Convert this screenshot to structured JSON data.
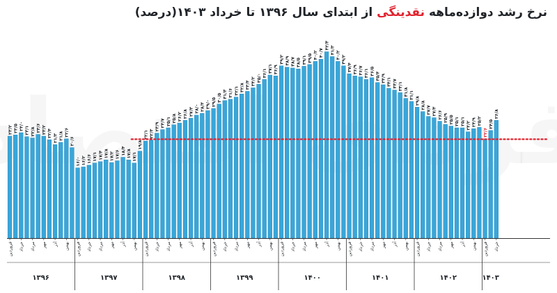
{
  "title": {
    "prefix": "نرخ رشد دوازده‌ماهه ",
    "highlight": "نقدینگی",
    "suffix": " از ابتدای  سال ۱۳۹۶ تا خرداد ۱۴۰۳(درصد)"
  },
  "watermark": "فردای اقتصاد",
  "colors": {
    "bar": "#3aa6d8",
    "bar_edge": "#1f86bd",
    "avg_line": "#e0232e",
    "axis": "#333333",
    "label": "#1f2328",
    "highlight_label": "#e0232e"
  },
  "chart_data": {
    "type": "bar",
    "ylim": [
      0,
      45
    ],
    "average_line": 22.5,
    "highlight_value_label": "۲۲/۶",
    "month_labels": [
      "فروردین",
      "خرداد",
      "مرداد",
      "مهر",
      "آذر",
      "بهمن"
    ],
    "years": [
      {
        "label": "۱۳۹۶",
        "values": [
          23.2,
          23.5,
          24.0,
          23.1,
          22.8,
          23.6,
          23.2,
          22.4,
          21.3,
          21.8,
          22.6,
          20.6
        ],
        "value_labels": [
          "۲۳/۲",
          "۲۳/۵",
          "۲۴/۰",
          "۲۳/۱",
          "۲۲/۸",
          "۲۳/۶",
          "۲۳/۲",
          "۲۲/۴",
          "۲۱/۳",
          "۲۱/۸",
          "۲۲/۶",
          "۲۰/۶"
        ]
      },
      {
        "label": "۱۳۹۷",
        "values": [
          16.0,
          16.2,
          16.6,
          17.1,
          17.4,
          17.8,
          17.2,
          17.6,
          18.4,
          17.8,
          17.1,
          19.8
        ],
        "value_labels": [
          "۱۶/۰",
          "۱۶/۲",
          "۱۶/۶",
          "۱۷/۱",
          "۱۷/۴",
          "۱۷/۸",
          "۱۷/۲",
          "۱۷/۶",
          "۱۸/۴",
          "۱۷/۸",
          "۱۷/۱",
          "۱۹/۸"
        ]
      },
      {
        "label": "۱۳۹۸",
        "values": [
          22.1,
          22.3,
          23.9,
          24.7,
          25.1,
          25.8,
          26.2,
          26.8,
          27.3,
          28.0,
          28.4,
          29.0
        ],
        "value_labels": [
          "۲۲/۱",
          "۲۲/۳",
          "۲۳/۹",
          "۲۴/۷",
          "۲۵/۱",
          "۲۵/۸",
          "۲۶/۲",
          "۲۶/۸",
          "۲۷/۳",
          "۲۸/۰",
          "۲۸/۴",
          "۲۹/۰"
        ]
      },
      {
        "label": "۱۳۹۹",
        "values": [
          29.5,
          30.5,
          31.3,
          31.6,
          32.1,
          32.8,
          33.4,
          34.2,
          35.0,
          36.1,
          37.1,
          36.9
        ],
        "value_labels": [
          "۲۹/۵",
          "۳۰/۵",
          "۳۱/۳",
          "۳۱/۶",
          "۳۲/۱",
          "۳۲/۸",
          "۳۳/۴",
          "۳۴/۲",
          "۳۵/۰",
          "۳۶/۱",
          "۳۷/۱",
          "۳۶/۹"
        ]
      },
      {
        "label": "۱۴۰۰",
        "values": [
          39.2,
          38.9,
          38.7,
          38.5,
          39.1,
          39.5,
          40.2,
          40.7,
          42.4,
          41.3,
          40.2,
          39.2
        ],
        "value_labels": [
          "۳۹/۲",
          "۳۸/۹",
          "۳۸/۷",
          "۳۸/۵",
          "۳۹/۱",
          "۳۹/۵",
          "۴۰/۲",
          "۴۰/۷",
          "۴۲/۴",
          "۴۱/۳",
          "۴۰/۲",
          "۳۹/۲"
        ]
      },
      {
        "label": "۱۴۰۱",
        "values": [
          37.4,
          36.9,
          36.7,
          36.1,
          36.5,
          35.4,
          34.9,
          34.1,
          33.7,
          33.1,
          31.8,
          31.1
        ],
        "value_labels": [
          "۳۷/۴",
          "۳۶/۹",
          "۳۶/۷",
          "۳۶/۱",
          "۳۶/۵",
          "۳۵/۴",
          "۳۴/۹",
          "۳۴/۱",
          "۳۳/۷",
          "۳۳/۱",
          "۳۱/۸",
          "۳۱/۱"
        ]
      },
      {
        "label": "۱۴۰۲",
        "values": [
          29.8,
          28.8,
          27.7,
          27.4,
          26.6,
          25.9,
          25.5,
          25.1,
          25.1,
          24.2,
          24.9,
          25.2
        ],
        "value_labels": [
          "۲۹/۸",
          "۲۸/۸",
          "۲۷/۷",
          "۲۷/۴",
          "۲۶/۶",
          "۲۵/۹",
          "۲۵/۵",
          "۲۵/۱",
          "۲۵/۱",
          "۲۴/۲",
          "۲۴/۹",
          "۲۵/۲"
        ]
      },
      {
        "label": "۱۴۰۳",
        "values": [
          22.6,
          24.5,
          26.8
        ],
        "value_labels": [
          "۲۲/۶",
          "۲۴/۵",
          "۲۶/۸"
        ]
      }
    ]
  }
}
